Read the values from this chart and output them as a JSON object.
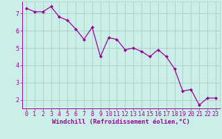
{
  "x": [
    0,
    1,
    2,
    3,
    4,
    5,
    6,
    7,
    8,
    9,
    10,
    11,
    12,
    13,
    14,
    15,
    16,
    17,
    18,
    19,
    20,
    21,
    22,
    23
  ],
  "y": [
    7.3,
    7.1,
    7.1,
    7.4,
    6.8,
    6.6,
    6.1,
    5.5,
    6.2,
    4.5,
    5.6,
    5.5,
    4.9,
    5.0,
    4.8,
    4.5,
    4.9,
    4.5,
    3.8,
    2.5,
    2.6,
    1.7,
    2.1,
    2.1
  ],
  "line_color": "#990099",
  "marker": "D",
  "marker_size": 2.0,
  "bg_color": "#cceee8",
  "grid_color": "#aad4cc",
  "xlabel": "Windchill (Refroidissement éolien,°C)",
  "ylim": [
    1.5,
    7.7
  ],
  "xlim": [
    -0.5,
    23.5
  ],
  "yticks": [
    2,
    3,
    4,
    5,
    6,
    7
  ],
  "xticks": [
    0,
    1,
    2,
    3,
    4,
    5,
    6,
    7,
    8,
    9,
    10,
    11,
    12,
    13,
    14,
    15,
    16,
    17,
    18,
    19,
    20,
    21,
    22,
    23
  ],
  "tick_color": "#990099",
  "label_color": "#990099",
  "axis_label_fontsize": 6.5,
  "tick_fontsize": 6.0,
  "linewidth": 0.9
}
